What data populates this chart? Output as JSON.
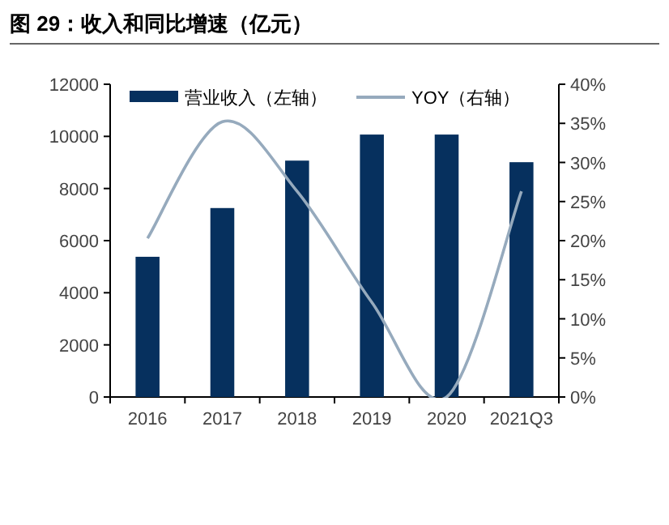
{
  "chart_data": {
    "type": "bar",
    "title": "图 29：收入和同比增速（亿元）",
    "categories": [
      "2016",
      "2017",
      "2018",
      "2019",
      "2020",
      "2021Q3"
    ],
    "series": [
      {
        "name": "营业收入（左轴）",
        "color": "#06305e",
        "values": [
          5380,
          7250,
          9070,
          10070,
          10070,
          9010
        ]
      },
      {
        "name": "YOY（右轴）",
        "type": "line",
        "axis": "y2",
        "color": "#96aabd",
        "values": [
          20.3,
          35.2,
          26.3,
          12.1,
          0,
          26.3
        ]
      }
    ],
    "ylim": [
      0,
      12000
    ],
    "yticks": [
      0,
      2000,
      4000,
      6000,
      8000,
      10000,
      12000
    ],
    "y2lim": [
      0,
      40
    ],
    "y2ticks": [
      {
        "value": 0,
        "label": "0%"
      },
      {
        "value": 5,
        "label": "5%"
      },
      {
        "value": 10,
        "label": "10%"
      },
      {
        "value": 15,
        "label": "15%"
      },
      {
        "value": 20,
        "label": "20%"
      },
      {
        "value": 25,
        "label": "25%"
      },
      {
        "value": 30,
        "label": "30%"
      },
      {
        "value": 35,
        "label": "35%"
      },
      {
        "value": 40,
        "label": "40%"
      }
    ],
    "legend": "top",
    "marker": "none",
    "line_style": "solid"
  }
}
